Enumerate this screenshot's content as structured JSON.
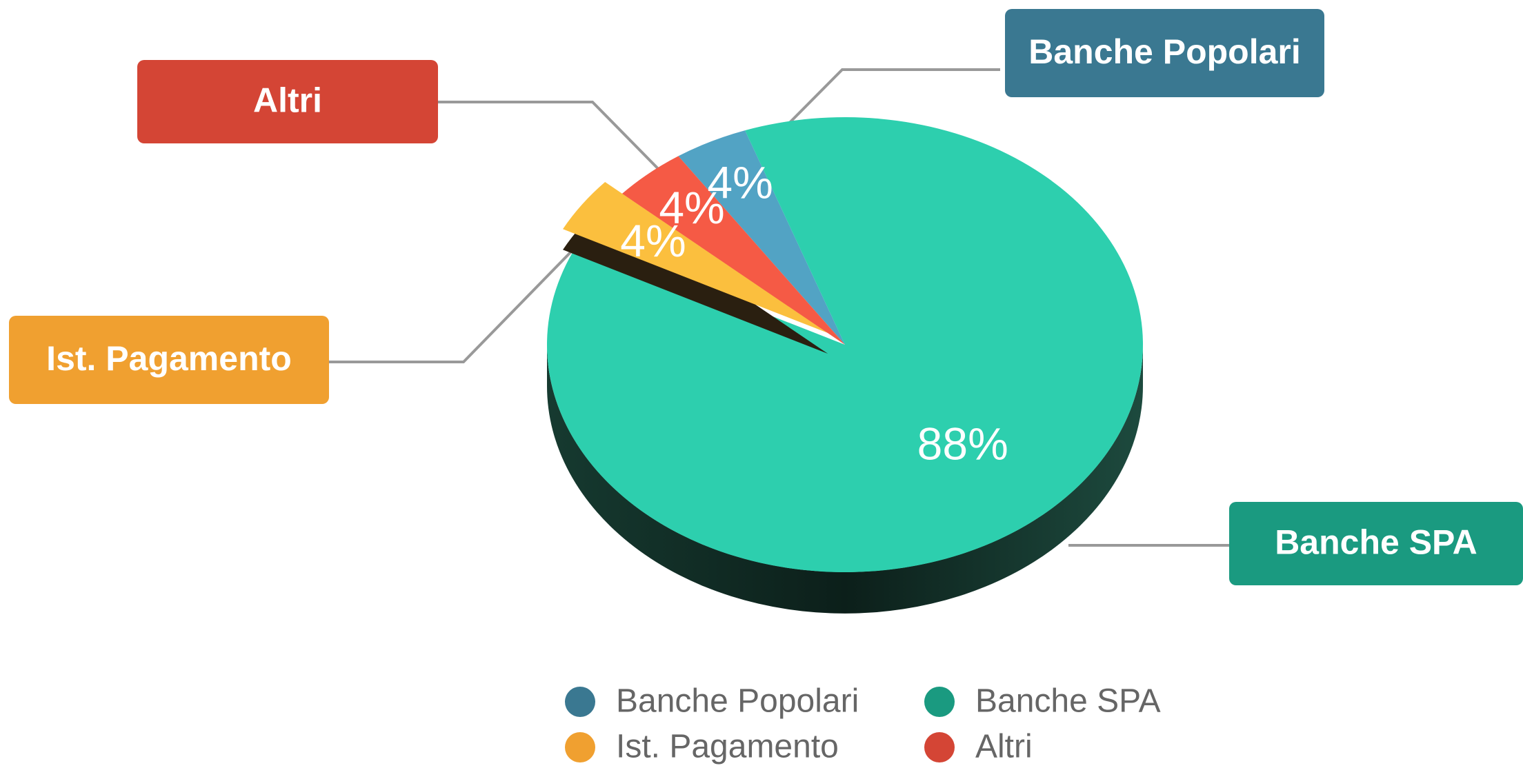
{
  "chart_data": {
    "type": "pie",
    "categories": [
      "Banche Popolari",
      "Banche SPA",
      "Ist. Pagamento",
      "Altri"
    ],
    "values": [
      4,
      88,
      4,
      4
    ],
    "value_labels": [
      "4%",
      "88%",
      "4%",
      "4%"
    ],
    "colors": [
      "#3a7891",
      "#1a9a80",
      "#f0a030",
      "#d44535"
    ],
    "slice_colors": [
      "#52a3c4",
      "#2dcfae",
      "#fbbf3e",
      "#f55a45"
    ],
    "legend": "bottom"
  }
}
